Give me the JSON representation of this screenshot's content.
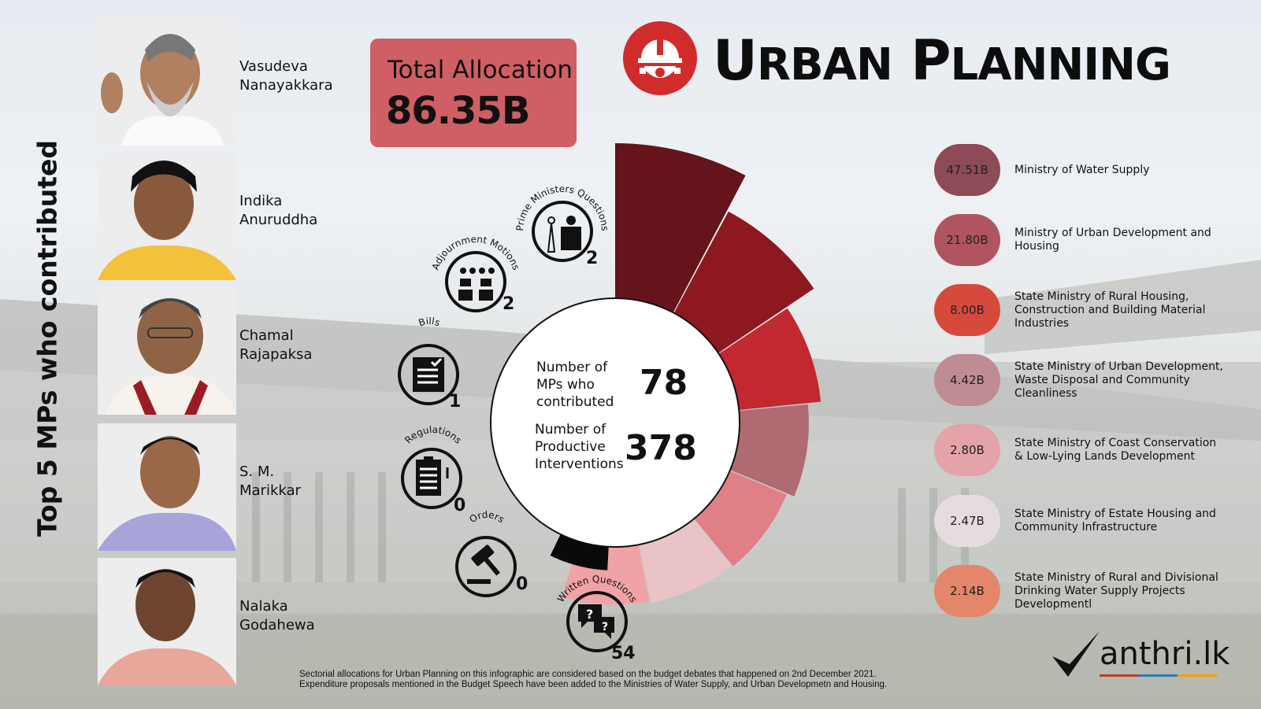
{
  "title": {
    "word1_initial": "U",
    "word1_rest": "RBAN",
    "word2_initial": "P",
    "word2_rest": "LANNING"
  },
  "side_title": "Top 5 MPs who contributed",
  "mps": [
    {
      "first": "Vasudeva",
      "last": "Nanayakkara"
    },
    {
      "first": "Indika",
      "last": "Anuruddha"
    },
    {
      "first": "Chamal",
      "last": "Rajapaksa"
    },
    {
      "first": "S. M.",
      "last": "Marikkar"
    },
    {
      "first": "Nalaka",
      "last": "Godahewa"
    }
  ],
  "allocation": {
    "label": "Total Allocation",
    "value": "86.35B"
  },
  "center": {
    "mps_label_1": "Number of",
    "mps_label_2": "MPs who",
    "mps_label_3": "contributed",
    "mps_value": "78",
    "int_label_1": "Number of",
    "int_label_2": "Productive",
    "int_label_3": "Interventions",
    "int_value": "378"
  },
  "interventions": [
    {
      "label": "Prime Ministers Questions",
      "count": "2",
      "icon": "podium-icon"
    },
    {
      "label": "Adjournment Motions",
      "count": "2",
      "icon": "meeting-icon"
    },
    {
      "label": "Bills",
      "count": "1",
      "icon": "document-check-icon"
    },
    {
      "label": "Regulations",
      "count": "0",
      "icon": "clipboard-icon"
    },
    {
      "label": "Orders",
      "count": "0",
      "icon": "gavel-icon"
    },
    {
      "label": "Written Questions",
      "count": "54",
      "icon": "speech-bubbles-icon"
    }
  ],
  "legend": [
    {
      "value": "47.51B",
      "label": "Ministry of Water Supply",
      "color": "#8c4b56"
    },
    {
      "value": "21.80B",
      "label": "Ministry of Urban Development and Housing",
      "color": "#b0555f"
    },
    {
      "value": "8.00B",
      "label": "State Ministry of Rural Housing, Construction and Building Material Industries",
      "color": "#d64a3b"
    },
    {
      "value": "4.42B",
      "label": "State Ministry of Urban Development, Waste Disposal and Community Cleanliness",
      "color": "#c08c93"
    },
    {
      "value": "2.80B",
      "label": "State Ministry of Coast Conservation & Low-Lying Lands Development",
      "color": "#e3a3a8"
    },
    {
      "value": "2.47B",
      "label": "State Ministry of Estate Housing and Community Infrastructure",
      "color": "#e6dcdf"
    },
    {
      "value": "2.14B",
      "label": "State Ministry of Rural and Divisional Drinking Water Supply Projects Developmentl",
      "color": "#e3866a"
    }
  ],
  "chart_data": {
    "type": "pie",
    "categories": [
      "Ministry of Water Supply",
      "Ministry of Urban Development and Housing",
      "State Ministry of Rural Housing, Construction and Building Material Industries",
      "State Ministry of Urban Development, Waste Disposal and Community Cleanliness",
      "State Ministry of Coast Conservation & Low-Lying Lands Development",
      "State Ministry of Estate Housing and Community Infrastructure",
      "State Ministry of Rural and Divisional Drinking Water Supply Projects Developmentl"
    ],
    "values": [
      47.51,
      21.8,
      8.0,
      4.42,
      2.8,
      2.47,
      2.14
    ],
    "unit": "B",
    "wedge_colors": [
      "#64141a",
      "#8e1820",
      "#c1282f",
      "#b06a72",
      "#e07f86",
      "#e9c3c6",
      "#f0a2a6"
    ]
  },
  "footnote": {
    "line1": "Sectorial allocations for Urban Planning on this infographic are considered based on the budget debates that happened on 2nd December 2021.",
    "line2": "Expenditure proposals mentioned in the Budget Speech have been added to the Ministries of Water Supply, and Urban Developmetn and Housing."
  },
  "logo": {
    "text": "anthri.lk"
  }
}
